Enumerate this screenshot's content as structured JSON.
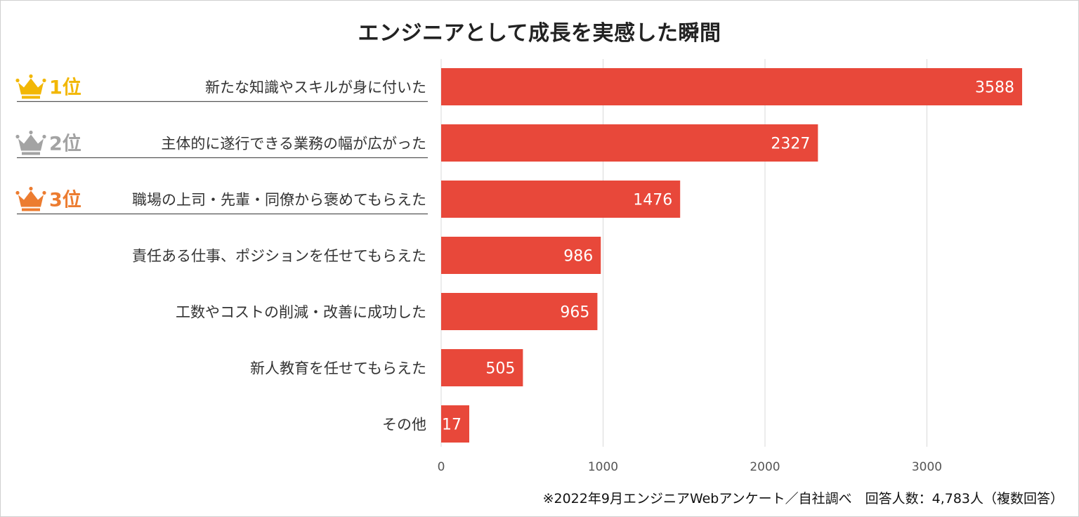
{
  "chart_data": {
    "type": "bar",
    "orientation": "horizontal",
    "title": "エンジニアとして成長を実感した瞬間",
    "categories": [
      "新たな知識やスキルが身に付いた",
      "主体的に遂行できる業務の幅が広がった",
      "職場の上司・先輩・同僚から褒めてもらえた",
      "責任ある仕事、ポジションを任せてもらえた",
      "工数やコストの削減・改善に成功した",
      "新人教育を任せてもらえた",
      "その他"
    ],
    "values": [
      3588,
      2327,
      1476,
      986,
      965,
      505,
      17
    ],
    "xlim": [
      0,
      3700
    ],
    "xticks": [
      0,
      1000,
      2000,
      3000
    ],
    "grid": true,
    "bar_color": "#e8483a",
    "ranks": [
      {
        "label": "1位",
        "color": "#f2b705"
      },
      {
        "label": "2位",
        "color": "#a3a3a3"
      },
      {
        "label": "3位",
        "color": "#ec7c30"
      }
    ]
  },
  "footnote": "※2022年9月エンジニアWebアンケート／自社調べ　回答人数：4,783人（複数回答）"
}
